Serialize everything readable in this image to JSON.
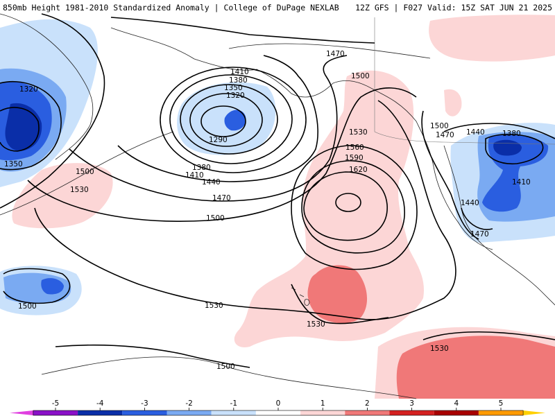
{
  "header": {
    "title": "850mb Height 1981-2010 Standardized Anomaly | College of DuPage NEXLAB",
    "run": "12Z GFS | F027 Valid: 15Z SAT JUN 21 2025"
  },
  "contour_labels": {
    "c1320_west": "1320",
    "c1350_west": "1350",
    "c1410": "1410",
    "c1380_n": "1380",
    "c1350_n": "1350",
    "c1320_n": "1320",
    "c1290": "1290",
    "c1380_s": "1380",
    "c1410_s": "1410",
    "c1440_s": "1440",
    "c1470_s": "1470",
    "c1500_s": "1500",
    "c1470_top": "1470",
    "c1500_top": "1500",
    "c1500_left": "1500",
    "c1530_left": "1530",
    "c1530_hi": "1530",
    "c1560": "1560",
    "c1590": "1590",
    "c1620": "1620",
    "c1530_bottom": "1530",
    "c1530_hawaii": "1530",
    "c1500_bottom": "1500",
    "c1500_ul": "1500",
    "c1530_sw": "1530",
    "c1500_coast": "1500",
    "c1470_coast": "1470",
    "c1440_us": "1440",
    "c1380_us": "1380",
    "c1410_us": "1410",
    "c1440_us2": "1440",
    "c1470_us": "1470"
  },
  "colorbar": {
    "ticks": [
      "-5",
      "-4",
      "-3",
      "-2",
      "-1",
      "0",
      "1",
      "2",
      "3",
      "4",
      "5"
    ],
    "colors": [
      "#e040e0",
      "#8a10c8",
      "#0a2ea8",
      "#2a5ee0",
      "#7aaaf2",
      "#c9e1fb",
      "#ffffff",
      "#fcd6d6",
      "#f07878",
      "#d42020",
      "#a80000",
      "#ff9a00",
      "#ffd000"
    ]
  },
  "colors": {
    "neg1": "#c9e1fb",
    "neg2": "#7aaaf2",
    "neg3": "#2a5ee0",
    "neg4": "#0a2ea8",
    "pos1": "#fcd6d6",
    "pos2": "#f07878"
  }
}
